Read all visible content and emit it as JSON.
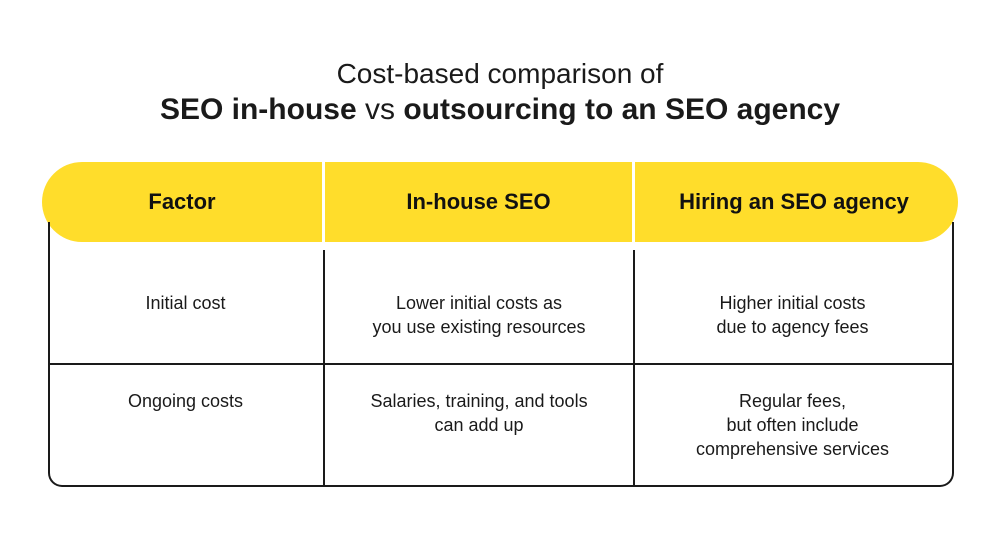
{
  "title": {
    "line1": "Cost-based comparison of",
    "part_a": "SEO in-house",
    "vs": " vs ",
    "part_b": "outsourcing to an SEO agency"
  },
  "table": {
    "headers": [
      "Factor",
      "In-house SEO",
      "Hiring an SEO agency"
    ],
    "rows": [
      {
        "factor": [
          "Initial cost"
        ],
        "in_house": [
          "Lower initial costs as",
          "you use existing resources"
        ],
        "agency": [
          "Higher initial costs",
          "due to agency fees"
        ]
      },
      {
        "factor": [
          "Ongoing costs"
        ],
        "in_house": [
          "Salaries, training, and tools",
          "can add up"
        ],
        "agency": [
          "Regular fees,",
          "but often include",
          "comprehensive services"
        ]
      }
    ]
  },
  "colors": {
    "accent": "#ffdd2b",
    "border": "#1a1a1a",
    "text": "#1a1a1a"
  }
}
